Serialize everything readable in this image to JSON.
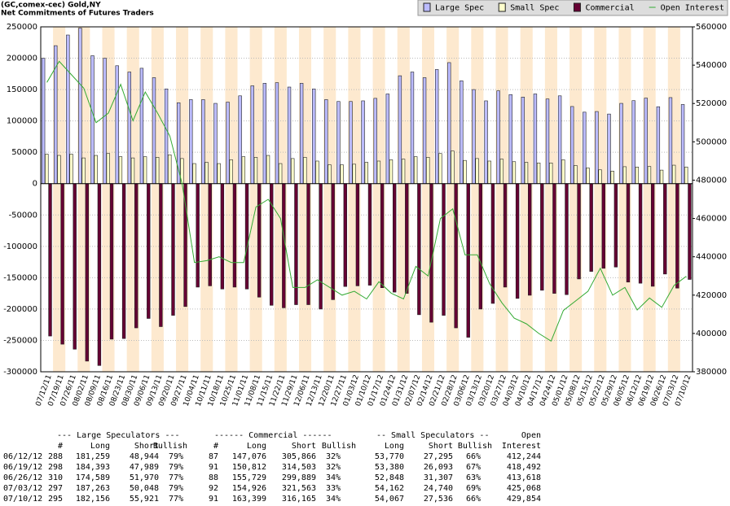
{
  "chart_data": {
    "type": "bar",
    "title": "(GC,comex-cec) Gold,NY",
    "subtitle": "Net Commitments of Futures Traders",
    "categories": [
      "07/12/11",
      "07/19/11",
      "07/26/11",
      "08/02/11",
      "08/09/11",
      "08/16/11",
      "08/23/11",
      "08/30/11",
      "09/06/11",
      "09/13/11",
      "09/20/11",
      "09/27/11",
      "10/04/11",
      "10/11/11",
      "10/18/11",
      "10/25/11",
      "11/01/11",
      "11/08/11",
      "11/15/11",
      "11/22/11",
      "11/29/11",
      "12/06/11",
      "12/13/11",
      "12/20/11",
      "12/27/11",
      "01/03/12",
      "01/10/12",
      "01/17/12",
      "01/24/12",
      "01/31/12",
      "02/07/12",
      "02/14/12",
      "02/21/12",
      "02/28/12",
      "03/06/12",
      "03/13/12",
      "03/20/12",
      "03/27/12",
      "04/03/12",
      "04/10/12",
      "04/17/12",
      "04/24/12",
      "05/01/12",
      "05/08/12",
      "05/15/12",
      "05/22/12",
      "05/29/12",
      "06/05/12",
      "06/12/12",
      "06/19/12",
      "06/26/12",
      "07/03/12",
      "07/10/12"
    ],
    "series": [
      {
        "name": "Large Spec",
        "type": "bar",
        "color": "#bbbbff",
        "values": [
          200000,
          220000,
          237000,
          248000,
          204000,
          200000,
          188000,
          178000,
          184000,
          169000,
          151000,
          129000,
          134000,
          134000,
          128000,
          130000,
          140000,
          156000,
          160000,
          161000,
          154000,
          160000,
          151000,
          134000,
          131000,
          131000,
          132000,
          136000,
          143000,
          172000,
          178000,
          169000,
          182000,
          193000,
          164000,
          150000,
          132000,
          148000,
          142000,
          138000,
          143000,
          135000,
          140000,
          123000,
          114000,
          115000,
          111000,
          128000,
          132315,
          136404,
          122619,
          137215,
          126235
        ]
      },
      {
        "name": "Small Spec",
        "type": "bar",
        "color": "#ffffcc",
        "values": [
          47000,
          45000,
          47000,
          41000,
          45000,
          48000,
          43000,
          41000,
          43000,
          42000,
          46000,
          40000,
          32000,
          34000,
          32000,
          38000,
          43000,
          42000,
          45000,
          32000,
          40000,
          42000,
          36000,
          30000,
          30000,
          31000,
          34000,
          36000,
          38000,
          39000,
          43000,
          42000,
          48000,
          52000,
          37000,
          40000,
          36000,
          39000,
          35000,
          34000,
          33000,
          33000,
          38000,
          29000,
          25000,
          22000,
          20000,
          27000,
          26475,
          27287,
          21541,
          29422,
          26531
        ]
      },
      {
        "name": "Commercial",
        "type": "bar",
        "color": "#660033",
        "values": [
          -243000,
          -256000,
          -264000,
          -283000,
          -290000,
          -248000,
          -247000,
          -230000,
          -215000,
          -228000,
          -210000,
          -196000,
          -165000,
          -163000,
          -168000,
          -165000,
          -168000,
          -181000,
          -194000,
          -198000,
          -193000,
          -193000,
          -200000,
          -185000,
          -164000,
          -163000,
          -162000,
          -166000,
          -173000,
          -175000,
          -209000,
          -221000,
          -210000,
          -230000,
          -245000,
          -200000,
          -191000,
          -165000,
          -183000,
          -178000,
          -170000,
          -175000,
          -177000,
          -152000,
          -140000,
          -135000,
          -133000,
          -157000,
          -158790,
          -163691,
          -144160,
          -166637,
          -152766
        ]
      },
      {
        "name": "Open Interest",
        "type": "line",
        "axis": "y2",
        "color": "#33aa33",
        "values": [
          531000,
          542000,
          535000,
          528000,
          510000,
          515000,
          530000,
          511000,
          526000,
          515000,
          503000,
          478000,
          437000,
          438000,
          440000,
          437000,
          437000,
          466000,
          470000,
          460000,
          424000,
          424000,
          428000,
          424000,
          420000,
          422000,
          418000,
          427000,
          421000,
          418000,
          435000,
          430000,
          460000,
          465000,
          441000,
          441000,
          426000,
          416000,
          408000,
          405000,
          400000,
          396000,
          412000,
          417000,
          422000,
          434000,
          420000,
          424000,
          412244,
          418492,
          413618,
          425068,
          429854
        ]
      }
    ],
    "ylim": [
      -300000,
      250000
    ],
    "yticks": [
      -300000,
      -250000,
      -200000,
      -150000,
      -100000,
      -50000,
      0,
      50000,
      100000,
      150000,
      200000,
      250000
    ],
    "y2lim": [
      380000,
      560000
    ],
    "y2ticks": [
      380000,
      400000,
      420000,
      440000,
      460000,
      480000,
      500000,
      520000,
      540000,
      560000
    ],
    "grid": true,
    "legend": "top-right",
    "band_color": "#fde9cf"
  },
  "table": {
    "groups": [
      "--- Large Speculators ---",
      "------ Commercial ------",
      "-- Small Speculators --",
      "Open"
    ],
    "columns": [
      "#",
      "Long",
      "Short",
      "Bullish",
      "#",
      "Long",
      "Short",
      "Bullish",
      "Long",
      "Short",
      "Bullish",
      "Interest"
    ],
    "rows": [
      [
        "06/12/12",
        "288",
        "181,259",
        "48,944",
        "79%",
        "87",
        "147,076",
        "305,866",
        "32%",
        "53,770",
        "27,295",
        "66%",
        "412,244"
      ],
      [
        "06/19/12",
        "298",
        "184,393",
        "47,989",
        "79%",
        "91",
        "150,812",
        "314,503",
        "32%",
        "53,380",
        "26,093",
        "67%",
        "418,492"
      ],
      [
        "06/26/12",
        "310",
        "174,589",
        "51,970",
        "77%",
        "88",
        "155,729",
        "299,889",
        "34%",
        "52,848",
        "31,307",
        "63%",
        "413,618"
      ],
      [
        "07/03/12",
        "297",
        "187,263",
        "50,048",
        "79%",
        "92",
        "154,926",
        "321,563",
        "33%",
        "54,162",
        "24,740",
        "69%",
        "425,068"
      ],
      [
        "07/10/12",
        "295",
        "182,156",
        "55,921",
        "77%",
        "91",
        "163,399",
        "316,165",
        "34%",
        "54,067",
        "27,536",
        "66%",
        "429,854"
      ]
    ]
  }
}
